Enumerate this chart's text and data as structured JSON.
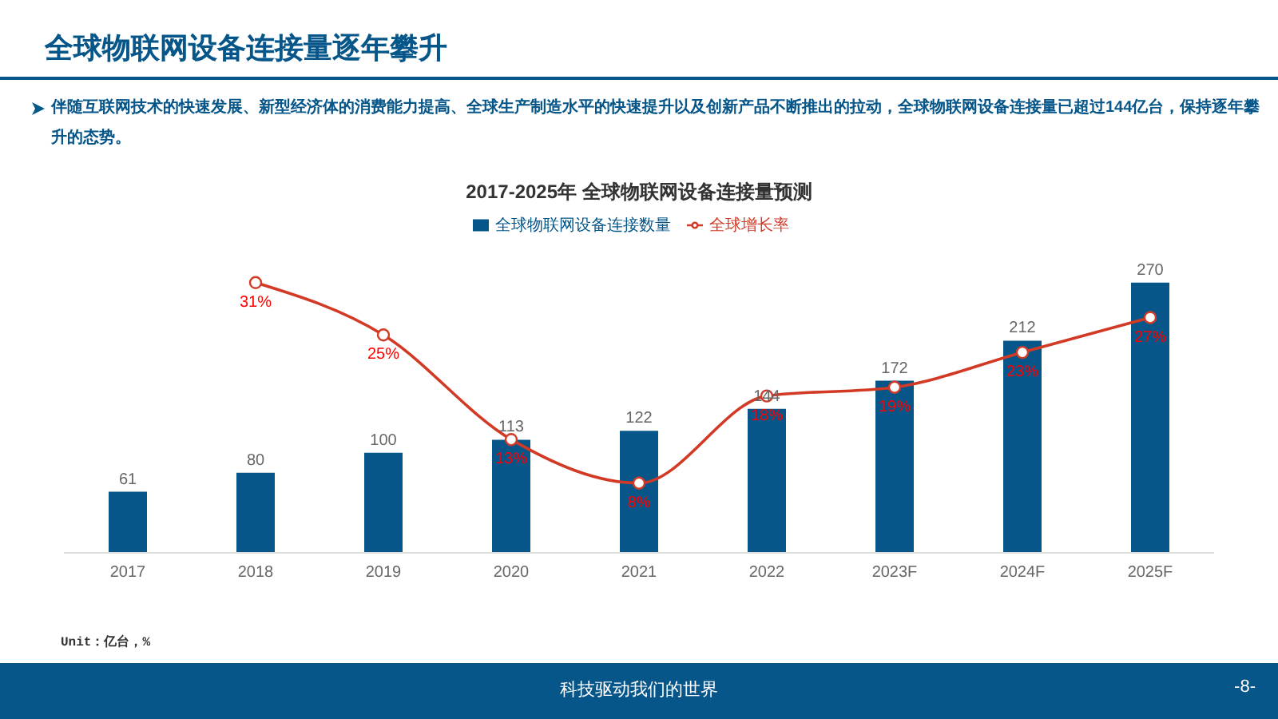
{
  "chart_data": {
    "type": "bar",
    "title": "全球物联网设备连接量逐年攀升",
    "subtitle": "2017-2025年 全球物联网设备连接量预测",
    "categories": [
      "2017",
      "2018",
      "2019",
      "2020",
      "2021",
      "2022",
      "2023F",
      "2024F",
      "2025F"
    ],
    "series": [
      {
        "name": "全球物联网设备连接数量",
        "color": "#06568a",
        "values": [
          61,
          80,
          100,
          113,
          122,
          144,
          172,
          212,
          270
        ]
      },
      {
        "name": "全球增长率",
        "type": "line",
        "axis": "y2",
        "color": "#d23a26",
        "marker": "circle",
        "values": [
          null,
          31,
          25,
          13,
          8,
          18,
          19,
          23,
          27
        ],
        "value_labels": [
          null,
          "31%",
          "25%",
          "13%",
          "8%",
          "18%",
          "19%",
          "23%",
          "27%"
        ]
      }
    ],
    "data_labels": true,
    "legend": "top",
    "grid": false,
    "annotations": [
      "伴随互联网技术的快速发展、新型经济体的消费能力提高、全球生产制造水平的快速提升以及创新产品不断推出的拉动，全球物联网设备连接量已超过144亿台，保持逐年攀升的态势。",
      "Unit：亿台，%",
      "科技驱动我们的世界",
      "-8-"
    ]
  }
}
